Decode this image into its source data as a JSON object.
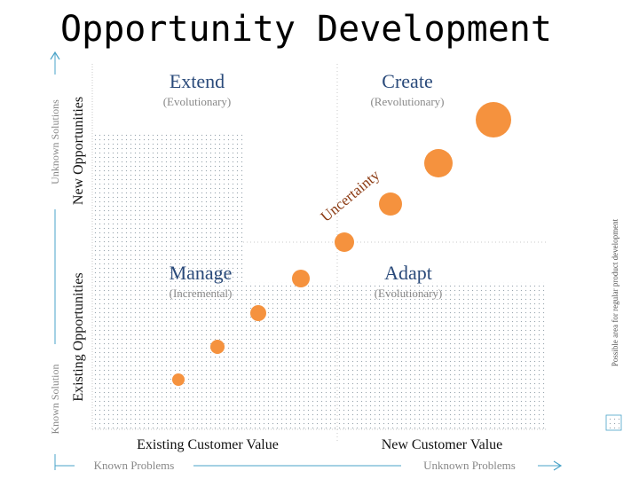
{
  "title": "Opportunity Development",
  "quadrants": {
    "extend": {
      "label": "Extend",
      "sub": "(Evolutionary)"
    },
    "create": {
      "label": "Create",
      "sub": "(Revolutionary)"
    },
    "manage": {
      "label": "Manage",
      "sub": "(Incremental)"
    },
    "adapt": {
      "label": "Adapt",
      "sub": "(Evolutionary)"
    }
  },
  "axes": {
    "y_outer_top": "Unknown Solutions",
    "y_outer_bottom": "Known Solution",
    "y_inner_top": "New Opportunities",
    "y_inner_bottom": "Existing Opportunities",
    "x_inner_left": "Existing Customer Value",
    "x_inner_right": "New Customer Value",
    "x_outer_left": "Known Problems",
    "x_outer_right": "Unknown Problems"
  },
  "uncertainty_label": "Uncertainty",
  "legend": {
    "label": "Possible area for regular product development"
  },
  "colors": {
    "title": "#000000",
    "quadrant_label": "#2a4a7a",
    "subtitle": "#888888",
    "axis_accent": "#4aa3c8",
    "axis_text": "#888888",
    "inner_axis_text": "#111111",
    "uncertainty": "#8b3a12",
    "bubble": "#f5923e",
    "dots": "#9aa7b0"
  }
}
